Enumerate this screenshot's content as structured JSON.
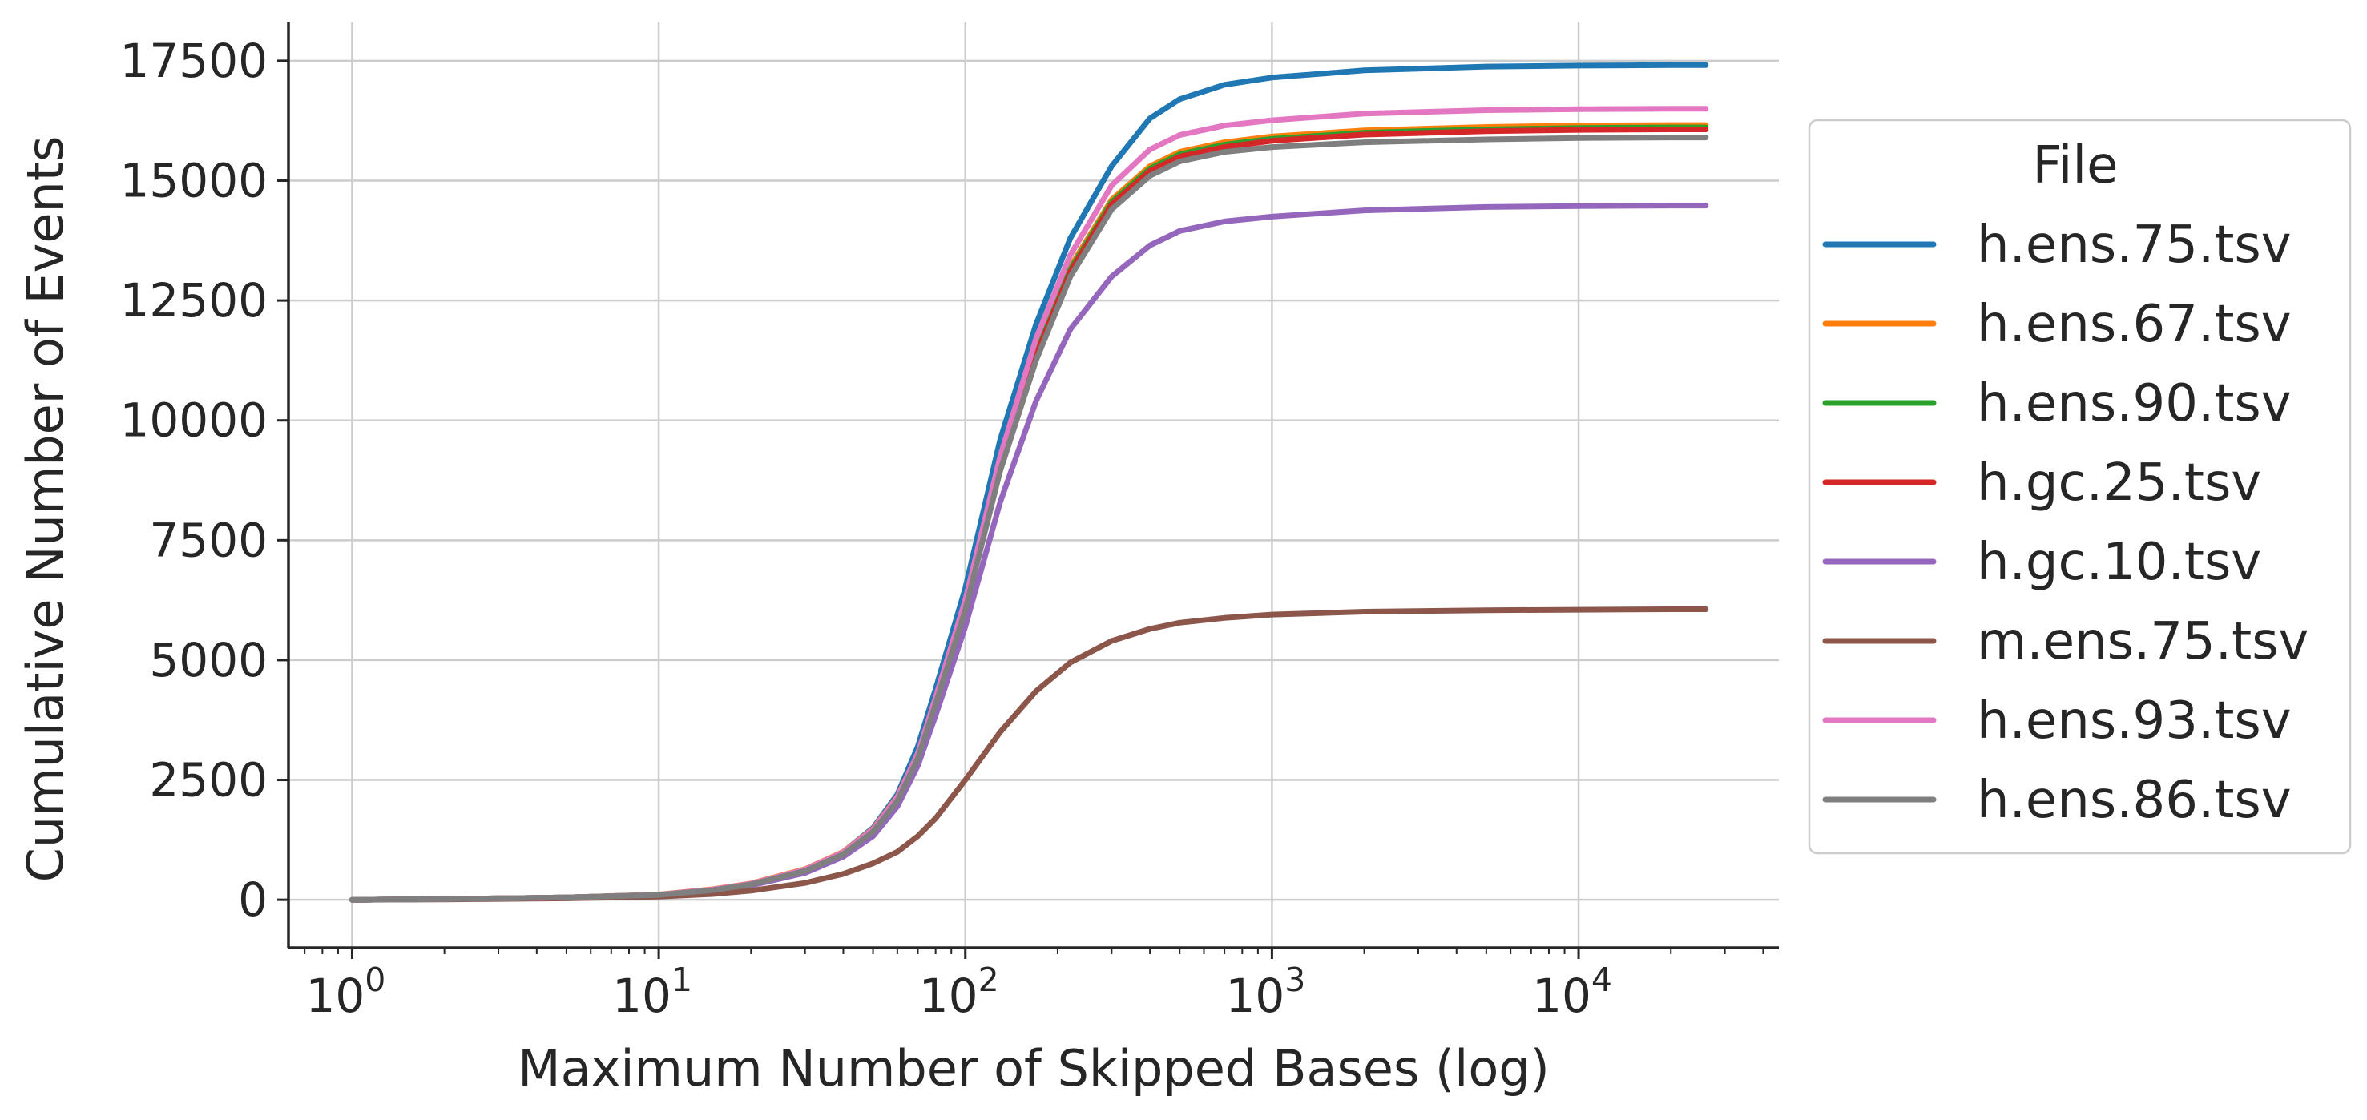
{
  "chart_data": {
    "type": "line",
    "title": "",
    "xlabel": "Maximum Number of Skipped Bases (log)",
    "ylabel": "Cumulative Number of Events",
    "xscale": "log",
    "xlim": [
      0.62,
      45000
    ],
    "ylim": [
      -1000,
      18300
    ],
    "x_ticks": [
      {
        "value": 1,
        "base": "10",
        "exp": "0"
      },
      {
        "value": 10,
        "base": "10",
        "exp": "1"
      },
      {
        "value": 100,
        "base": "10",
        "exp": "2"
      },
      {
        "value": 1000,
        "base": "10",
        "exp": "3"
      },
      {
        "value": 10000,
        "base": "10",
        "exp": "4"
      }
    ],
    "y_ticks": [
      0,
      2500,
      5000,
      7500,
      10000,
      12500,
      15000,
      17500
    ],
    "grid": true,
    "legend": {
      "title": "File",
      "placement": "outside right"
    },
    "x": [
      1,
      2,
      5,
      10,
      15,
      20,
      30,
      40,
      50,
      60,
      70,
      80,
      100,
      130,
      170,
      220,
      300,
      400,
      500,
      700,
      1000,
      2000,
      5000,
      10000,
      20000,
      26000
    ],
    "series": [
      {
        "name": "h.ens.75.tsv",
        "color": "#1f77b4",
        "values": [
          0,
          15,
          50,
          105,
          210,
          330,
          620,
          1000,
          1500,
          2200,
          3200,
          4400,
          6500,
          9600,
          12000,
          13800,
          15300,
          16300,
          16700,
          17000,
          17150,
          17300,
          17380,
          17400,
          17410,
          17410
        ]
      },
      {
        "name": "h.ens.67.tsv",
        "color": "#ff7f0e",
        "values": [
          0,
          15,
          50,
          110,
          220,
          340,
          640,
          1000,
          1480,
          2150,
          3050,
          4200,
          6200,
          9100,
          11500,
          13200,
          14600,
          15300,
          15600,
          15800,
          15920,
          16050,
          16120,
          16150,
          16160,
          16160
        ]
      },
      {
        "name": "h.ens.90.tsv",
        "color": "#2ca02c",
        "values": [
          0,
          15,
          50,
          105,
          210,
          330,
          620,
          980,
          1450,
          2100,
          3000,
          4150,
          6150,
          9050,
          11400,
          13150,
          14550,
          15250,
          15550,
          15750,
          15870,
          16000,
          16070,
          16100,
          16110,
          16110
        ]
      },
      {
        "name": "h.gc.25.tsv",
        "color": "#d62728",
        "values": [
          0,
          15,
          50,
          100,
          200,
          320,
          600,
          960,
          1430,
          2080,
          2980,
          4120,
          6100,
          9000,
          11350,
          13100,
          14500,
          15200,
          15500,
          15700,
          15830,
          15960,
          16030,
          16060,
          16070,
          16070
        ]
      },
      {
        "name": "h.gc.10.tsv",
        "color": "#9467bd",
        "values": [
          0,
          14,
          45,
          95,
          190,
          300,
          560,
          900,
          1330,
          1950,
          2800,
          3850,
          5700,
          8300,
          10400,
          11900,
          13000,
          13650,
          13950,
          14150,
          14250,
          14380,
          14450,
          14470,
          14480,
          14480
        ]
      },
      {
        "name": "m.ens.75.tsv",
        "color": "#8c564b",
        "values": [
          0,
          8,
          30,
          65,
          120,
          190,
          350,
          540,
          760,
          1000,
          1330,
          1700,
          2500,
          3500,
          4350,
          4950,
          5400,
          5650,
          5780,
          5880,
          5950,
          6010,
          6040,
          6050,
          6060,
          6060
        ]
      },
      {
        "name": "h.ens.93.tsv",
        "color": "#e377c2",
        "values": [
          0,
          15,
          50,
          105,
          215,
          335,
          630,
          990,
          1470,
          2140,
          3050,
          4220,
          6250,
          9250,
          11700,
          13450,
          14900,
          15650,
          15950,
          16150,
          16260,
          16400,
          16470,
          16490,
          16500,
          16500
        ]
      },
      {
        "name": "h.ens.86.tsv",
        "color": "#7f7f7f",
        "values": [
          0,
          15,
          50,
          100,
          200,
          320,
          600,
          950,
          1420,
          2060,
          2950,
          4080,
          6050,
          8950,
          11250,
          13000,
          14400,
          15100,
          15400,
          15600,
          15700,
          15800,
          15860,
          15890,
          15900,
          15900
        ]
      }
    ]
  }
}
